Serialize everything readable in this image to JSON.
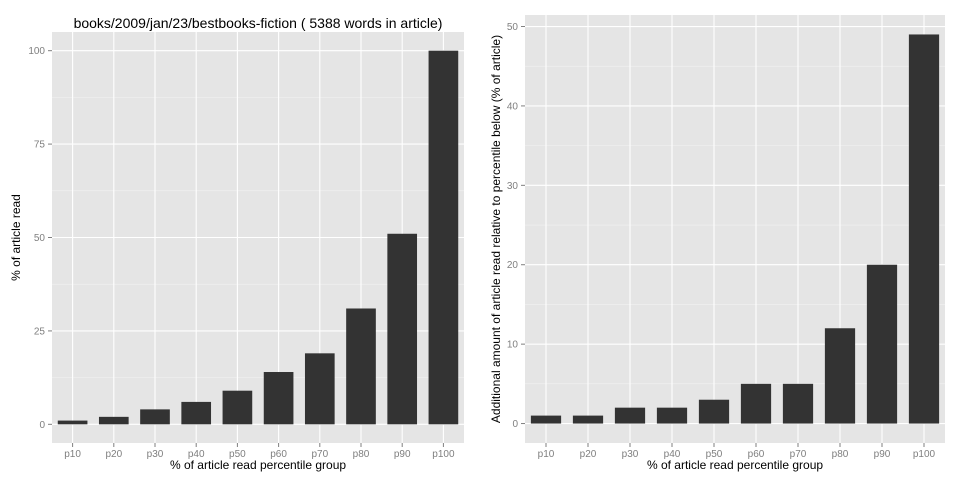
{
  "colors": {
    "panel": "#e5e5e5",
    "grid": "#ffffff",
    "bar": "#333333",
    "tick_text": "#7f7f7f"
  },
  "chart_data": [
    {
      "type": "bar",
      "title": "books/2009/jan/23/bestbooks-fiction ( 5388 words in article)",
      "xlabel": "% of article read percentile group",
      "ylabel": "% of article read",
      "categories": [
        "p10",
        "p20",
        "p30",
        "p40",
        "p50",
        "p60",
        "p70",
        "p80",
        "p90",
        "p100"
      ],
      "values": [
        1,
        2,
        4,
        6,
        9,
        14,
        19,
        31,
        51,
        100
      ],
      "ylim": [
        -5,
        105
      ],
      "yticks": [
        0,
        25,
        50,
        75,
        100
      ],
      "ytick_labels": [
        "0",
        "25",
        "50",
        "75",
        "100"
      ],
      "grid": true
    },
    {
      "type": "bar",
      "title": "",
      "xlabel": "% of article read percentile group",
      "ylabel": "Additional amount of article read relative to percentile below (% of article)",
      "categories": [
        "p10",
        "p20",
        "p30",
        "p40",
        "p50",
        "p60",
        "p70",
        "p80",
        "p90",
        "p100"
      ],
      "values": [
        1,
        1,
        2,
        2,
        3,
        5,
        5,
        12,
        20,
        49
      ],
      "ylim": [
        -2.45,
        51.45
      ],
      "yticks": [
        0,
        10,
        20,
        30,
        40,
        50
      ],
      "ytick_labels": [
        "0",
        "10",
        "20",
        "30",
        "40",
        "50"
      ],
      "grid": true
    }
  ]
}
